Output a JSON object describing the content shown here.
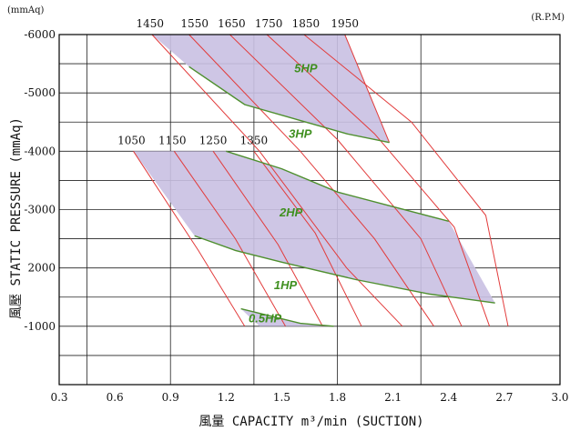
{
  "chart_data": {
    "type": "line",
    "title": "",
    "xlabel": "風量 CAPACITY m³/min (SUCTION)",
    "ylabel": "風壓 STATIC  PRESSURE (mmAq)",
    "y_unit_label": "(mmAq)",
    "rpm_unit_label": "(R.P.M)",
    "xlim": [
      0.3,
      3.0
    ],
    "ylim": [
      0,
      6000
    ],
    "x_ticks": [
      {
        "value": 0.3,
        "label": "0.3"
      },
      {
        "value": 0.6,
        "label": "0.6"
      },
      {
        "value": 0.9,
        "label": "0.9"
      },
      {
        "value": 1.2,
        "label": "1.2"
      },
      {
        "value": 1.5,
        "label": "1.5"
      },
      {
        "value": 1.8,
        "label": "1.8"
      },
      {
        "value": 2.1,
        "label": "2.1"
      },
      {
        "value": 2.4,
        "label": "2.4"
      },
      {
        "value": 2.7,
        "label": "2.7"
      },
      {
        "value": 3.0,
        "label": "3.0"
      }
    ],
    "y_ticks": [
      {
        "value": 1000,
        "label": "-1000"
      },
      {
        "value": 2000,
        "label": "2000"
      },
      {
        "value": 3000,
        "label": "-3000"
      },
      {
        "value": 4000,
        "label": "-4000"
      },
      {
        "value": 5000,
        "label": "-5000"
      },
      {
        "value": 6000,
        "label": "-6000"
      }
    ],
    "grid_x": [
      0.45,
      0.9,
      1.35,
      1.8,
      2.25
    ],
    "grid_y": [
      500,
      1000,
      1500,
      2000,
      2500,
      3000,
      3500,
      4000,
      4500,
      5000,
      5500
    ],
    "rpm_labels_upper": [
      {
        "label": "1450",
        "x": 0.79,
        "y": 6000
      },
      {
        "label": "1550",
        "x": 1.03,
        "y": 6000
      },
      {
        "label": "1650",
        "x": 1.23,
        "y": 6000
      },
      {
        "label": "1750",
        "x": 1.43,
        "y": 6000
      },
      {
        "label": "1850",
        "x": 1.63,
        "y": 6000
      },
      {
        "label": "1950",
        "x": 1.84,
        "y": 6000
      }
    ],
    "rpm_labels_lower": [
      {
        "label": "1050",
        "x": 0.69,
        "y": 4000
      },
      {
        "label": "1150",
        "x": 0.91,
        "y": 4000
      },
      {
        "label": "1250",
        "x": 1.13,
        "y": 4000
      },
      {
        "label": "1350",
        "x": 1.35,
        "y": 4000
      }
    ],
    "rpm_curves": [
      [
        [
          0.8,
          6000
        ],
        [
          1.38,
          4000
        ],
        [
          1.85,
          2000
        ],
        [
          2.15,
          1000
        ]
      ],
      [
        [
          1.0,
          6000
        ],
        [
          1.6,
          4000
        ],
        [
          2.0,
          2500
        ],
        [
          2.32,
          1000
        ]
      ],
      [
        [
          1.22,
          6000
        ],
        [
          1.8,
          4200
        ],
        [
          2.25,
          2500
        ],
        [
          2.47,
          1000
        ]
      ],
      [
        [
          1.42,
          6000
        ],
        [
          2.0,
          4300
        ],
        [
          2.43,
          2700
        ],
        [
          2.62,
          1000
        ]
      ],
      [
        [
          1.62,
          6000
        ],
        [
          2.2,
          4500
        ],
        [
          2.6,
          2900
        ],
        [
          2.72,
          1000
        ]
      ],
      [
        [
          1.84,
          6000
        ],
        [
          2.08,
          4150
        ]
      ],
      [
        [
          0.7,
          4000
        ],
        [
          1.05,
          2300
        ],
        [
          1.3,
          1000
        ]
      ],
      [
        [
          0.92,
          4000
        ],
        [
          1.25,
          2500
        ],
        [
          1.52,
          1000
        ]
      ],
      [
        [
          1.13,
          4000
        ],
        [
          1.48,
          2400
        ],
        [
          1.72,
          1000
        ]
      ],
      [
        [
          1.35,
          4000
        ],
        [
          1.68,
          2600
        ],
        [
          1.93,
          1000
        ]
      ]
    ],
    "regions": [
      {
        "name": "upper",
        "points": [
          [
            0.8,
            6000
          ],
          [
            1.84,
            6000
          ],
          [
            2.08,
            4150
          ],
          [
            1.85,
            4300
          ],
          [
            1.3,
            4800
          ],
          [
            1.0,
            5450
          ]
        ]
      },
      {
        "name": "middle",
        "points": [
          [
            0.7,
            4000
          ],
          [
            1.2,
            4000
          ],
          [
            1.5,
            3700
          ],
          [
            1.8,
            3300
          ],
          [
            2.1,
            3050
          ],
          [
            2.4,
            2800
          ],
          [
            2.65,
            1400
          ],
          [
            2.3,
            1550
          ],
          [
            1.9,
            1800
          ],
          [
            1.5,
            2100
          ],
          [
            1.25,
            2300
          ],
          [
            1.03,
            2550
          ]
        ]
      },
      {
        "name": "bottom",
        "points": [
          [
            1.28,
            1300
          ],
          [
            1.6,
            1050
          ],
          [
            1.78,
            1000
          ],
          [
            1.38,
            1000
          ]
        ]
      }
    ],
    "hp_lines": [
      {
        "points": [
          [
            1.0,
            5450
          ],
          [
            1.3,
            4800
          ],
          [
            1.85,
            4300
          ],
          [
            2.08,
            4150
          ]
        ]
      },
      {
        "points": [
          [
            1.2,
            4000
          ],
          [
            1.5,
            3700
          ],
          [
            1.8,
            3300
          ],
          [
            2.1,
            3050
          ],
          [
            2.4,
            2800
          ]
        ]
      },
      {
        "points": [
          [
            1.03,
            2550
          ],
          [
            1.25,
            2300
          ],
          [
            1.5,
            2100
          ],
          [
            1.9,
            1800
          ],
          [
            2.3,
            1550
          ],
          [
            2.65,
            1400
          ]
        ]
      },
      {
        "points": [
          [
            1.28,
            1300
          ],
          [
            1.6,
            1050
          ],
          [
            1.78,
            1000
          ]
        ]
      }
    ],
    "hp_labels": [
      {
        "label": "5HP",
        "x": 1.63,
        "y": 5350
      },
      {
        "label": "3HP",
        "x": 1.6,
        "y": 4230
      },
      {
        "label": "2HP",
        "x": 1.55,
        "y": 2880
      },
      {
        "label": "1HP",
        "x": 1.52,
        "y": 1640
      },
      {
        "label": "0.5HP",
        "x": 1.41,
        "y": 1070
      }
    ]
  }
}
